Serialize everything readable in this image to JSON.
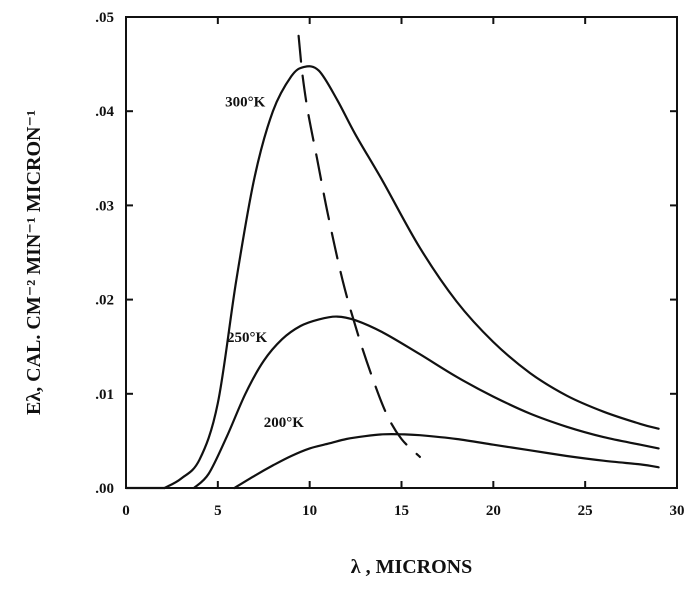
{
  "chart_data": {
    "type": "line",
    "xlabel": "λ , MICRONS",
    "ylabel": "Eλ, CAL. CM⁻² MIN⁻¹ MICRON⁻¹",
    "xlim": [
      0,
      30
    ],
    "ylim": [
      0,
      0.05
    ],
    "xticks": [
      {
        "value": 0,
        "label": "0"
      },
      {
        "value": 5,
        "label": "5"
      },
      {
        "value": 10,
        "label": "10"
      },
      {
        "value": 15,
        "label": "15"
      },
      {
        "value": 20,
        "label": "20"
      },
      {
        "value": 25,
        "label": "25"
      },
      {
        "value": 30,
        "label": "30"
      }
    ],
    "yticks": [
      {
        "value": 0.0,
        "label": ".00"
      },
      {
        "value": 0.01,
        "label": ".01"
      },
      {
        "value": 0.02,
        "label": ".02"
      },
      {
        "value": 0.03,
        "label": ".03"
      },
      {
        "value": 0.04,
        "label": ".04"
      },
      {
        "value": 0.05,
        "label": ".05"
      }
    ],
    "grid": false,
    "legend": "none",
    "series": [
      {
        "name": "300°K",
        "label_anchor": {
          "x": 5.4,
          "y": 0.0405
        },
        "x": [
          2.1,
          3.0,
          4.0,
          5.0,
          6.0,
          7.0,
          8.0,
          9.0,
          9.7,
          10.5,
          11.5,
          12.5,
          14.0,
          16.0,
          18.0,
          20.0,
          22.0,
          24.0,
          26.0,
          28.0,
          29.0
        ],
        "y": [
          0.0,
          0.001,
          0.003,
          0.009,
          0.022,
          0.033,
          0.04,
          0.0437,
          0.0447,
          0.0443,
          0.0412,
          0.0375,
          0.0325,
          0.0255,
          0.0198,
          0.0155,
          0.0122,
          0.0098,
          0.0081,
          0.0068,
          0.0063
        ]
      },
      {
        "name": "250°K",
        "label_anchor": {
          "x": 5.5,
          "y": 0.0155
        },
        "x": [
          3.7,
          4.5,
          5.5,
          6.5,
          7.5,
          8.5,
          9.5,
          10.5,
          11.5,
          12.5,
          14.0,
          16.0,
          18.0,
          20.0,
          22.0,
          24.0,
          26.0,
          28.0,
          29.0
        ],
        "y": [
          0.0,
          0.0015,
          0.0055,
          0.01,
          0.0135,
          0.0158,
          0.0172,
          0.0179,
          0.0182,
          0.0178,
          0.0165,
          0.0142,
          0.0118,
          0.0097,
          0.0079,
          0.0065,
          0.0054,
          0.0046,
          0.0042
        ]
      },
      {
        "name": "200°K",
        "label_anchor": {
          "x": 7.5,
          "y": 0.0065
        },
        "x": [
          5.9,
          7.0,
          8.0,
          9.0,
          10.0,
          11.0,
          12.0,
          13.0,
          14.0,
          15.0,
          16.0,
          18.0,
          20.0,
          22.0,
          24.0,
          26.0,
          28.0,
          29.0
        ],
        "y": [
          0.0,
          0.0013,
          0.0024,
          0.0034,
          0.0042,
          0.0047,
          0.0052,
          0.0055,
          0.0057,
          0.0057,
          0.0056,
          0.0052,
          0.0046,
          0.004,
          0.0034,
          0.0029,
          0.0025,
          0.0022
        ]
      }
    ],
    "peak_locus": {
      "style": "dashed",
      "x": [
        9.4,
        9.6,
        9.9,
        10.4,
        11.0,
        11.8,
        12.6,
        13.4,
        14.2,
        15.0,
        16.0
      ],
      "y": [
        0.048,
        0.044,
        0.04,
        0.035,
        0.029,
        0.022,
        0.0165,
        0.0118,
        0.0078,
        0.0052,
        0.0033
      ]
    }
  }
}
